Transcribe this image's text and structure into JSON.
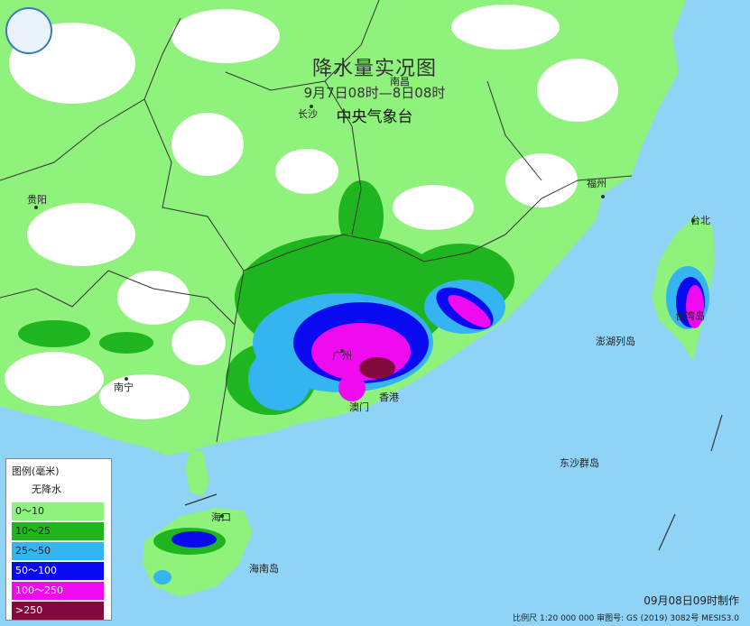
{
  "title": {
    "main": "降水量实况图",
    "period": "9月7日08时—8日08时",
    "agency": "中央气象台"
  },
  "legend": {
    "header": "图例(毫米)",
    "no_rain": "无降水",
    "classes": [
      {
        "label": "0～10",
        "color": "#8ef27c"
      },
      {
        "label": "10～25",
        "color": "#1fb51f"
      },
      {
        "label": "25～50",
        "color": "#35b4f2"
      },
      {
        "label": "50～100",
        "color": "#0a0af0"
      },
      {
        "label": "100～250",
        "color": "#f00af0"
      },
      {
        "label": ">250",
        "color": "#820a3c"
      }
    ]
  },
  "places": {
    "nanchang": "南昌",
    "changsha": "长沙",
    "guiyang": "贵阳",
    "fuzhou": "福州",
    "taibei": "台北",
    "guangzhou": "广州",
    "aomen": "澳门",
    "xianggang": "香港",
    "nanning": "南宁",
    "haikou": "海口",
    "penghu": "澎湖列岛",
    "dongsha": "东沙群岛",
    "hainan": "海南岛",
    "taiwan_label": "台湾岛"
  },
  "footer": {
    "made": "09月08日09时制作",
    "scale": "比例尺 1:20 000 000   审图号: GS (2019) 3082号 MESIS3.0"
  },
  "colors": {
    "sea": "#8fd3f7",
    "land_dry": "#ffffff",
    "boundary": "#333333"
  }
}
